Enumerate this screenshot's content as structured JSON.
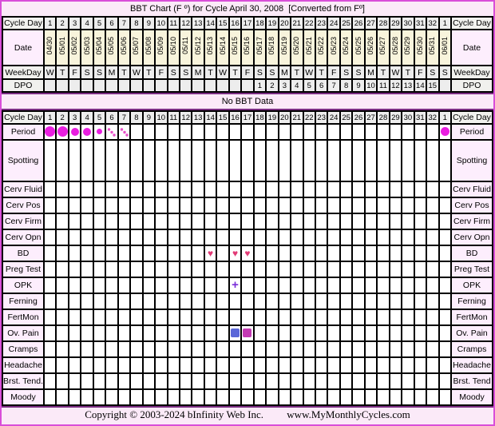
{
  "title": "BBT Chart (F º) for Cycle April 30, 2008  [Converted from Fº]",
  "banner": "No BBT Data",
  "footer": {
    "copyright": "Copyright © 2003-2024 bInfinity Web Inc.",
    "site": "www.MyMonthlyCycles.com"
  },
  "colors": {
    "frame": "#d94ed9",
    "page_bg": "#fbeaf8",
    "rule": "#7a2d82",
    "grid": "#000000",
    "label_pink": "#fdeefd",
    "label_gray": "#f1f1ee",
    "cell_gray": "#ededed",
    "date_cream": "#f8f4dc",
    "period_dot": "#e91ee0",
    "spot_dot": "#e84fc8",
    "heart": "#e23a76",
    "plus": "#7b2fd8",
    "ov_pain_blue": "#5b67d8",
    "ov_pain_magenta": "#c43ab4"
  },
  "calendar_labels": {
    "cycle_day": "Cycle Day",
    "date": "Date",
    "weekday": "WeekDay",
    "dpo": "DPO"
  },
  "marker_glyphs": {
    "heart": "♥",
    "plus": "+"
  },
  "chart_data": {
    "type": "table",
    "title": "BBT Chart (F º) for Cycle April 30, 2008 [Converted from Fº]",
    "bbt_plot": "No BBT Data",
    "cycle_days": [
      "1",
      "2",
      "3",
      "4",
      "5",
      "6",
      "7",
      "8",
      "9",
      "10",
      "11",
      "12",
      "13",
      "14",
      "15",
      "16",
      "17",
      "18",
      "19",
      "20",
      "21",
      "22",
      "23",
      "24",
      "25",
      "26",
      "27",
      "28",
      "29",
      "30",
      "31",
      "32",
      "1"
    ],
    "dates": [
      "04/30",
      "05/01",
      "05/02",
      "05/03",
      "05/04",
      "05/05",
      "05/06",
      "05/07",
      "05/08",
      "05/09",
      "05/10",
      "05/11",
      "05/12",
      "05/13",
      "05/14",
      "05/15",
      "05/16",
      "05/17",
      "05/18",
      "05/19",
      "05/20",
      "05/21",
      "05/22",
      "05/23",
      "05/24",
      "05/25",
      "05/26",
      "05/27",
      "05/28",
      "05/29",
      "05/30",
      "05/31",
      "06/01"
    ],
    "weekdays": [
      "W",
      "T",
      "F",
      "S",
      "S",
      "M",
      "T",
      "W",
      "T",
      "F",
      "S",
      "S",
      "M",
      "T",
      "W",
      "T",
      "F",
      "S",
      "S",
      "M",
      "T",
      "W",
      "T",
      "F",
      "S",
      "S",
      "M",
      "T",
      "W",
      "T",
      "F",
      "S",
      "S"
    ],
    "dpo": [
      "",
      "",
      "",
      "",
      "",
      "",
      "",
      "",
      "",
      "",
      "",
      "",
      "",
      "",
      "",
      "",
      "",
      "1",
      "2",
      "3",
      "4",
      "5",
      "6",
      "7",
      "8",
      "9",
      "10",
      "11",
      "12",
      "13",
      "14",
      "15",
      ""
    ],
    "events": {
      "period_heavy_days": [
        1,
        2
      ],
      "period_medium_days": [
        3,
        4
      ],
      "period_light_days": [
        5
      ],
      "period_spotting_days": [
        6,
        7
      ],
      "next_cycle_period_start_column": 33,
      "bd_days": [
        14,
        16,
        17
      ],
      "opk_positive_days": [
        16
      ],
      "ov_pain_days": [
        16,
        17
      ]
    },
    "symptom_rows": [
      {
        "label": "Period",
        "right": "Period",
        "markers": [
          {
            "day": 1,
            "kind": "dot",
            "size": 13
          },
          {
            "day": 2,
            "kind": "dot",
            "size": 13
          },
          {
            "day": 3,
            "kind": "dot",
            "size": 10
          },
          {
            "day": 4,
            "kind": "dot",
            "size": 10
          },
          {
            "day": 5,
            "kind": "dot",
            "size": 7
          },
          {
            "day": 6,
            "kind": "spot"
          },
          {
            "day": 7,
            "kind": "spot"
          },
          {
            "day": 33,
            "kind": "dot",
            "size": 11
          }
        ]
      },
      {
        "label": "Spotting",
        "right": "Spotting",
        "markers": []
      },
      {
        "label": "Cerv Fluid",
        "right": "Cerv Fluid",
        "markers": []
      },
      {
        "label": "Cerv Pos",
        "right": "Cerv Pos",
        "markers": []
      },
      {
        "label": "Cerv Firm",
        "right": "Cerv Firm",
        "markers": []
      },
      {
        "label": "Cerv Opn",
        "right": "Cerv Opn",
        "markers": []
      },
      {
        "label": "BD",
        "right": "BD",
        "markers": [
          {
            "day": 14,
            "kind": "heart"
          },
          {
            "day": 16,
            "kind": "heart"
          },
          {
            "day": 17,
            "kind": "heart"
          }
        ]
      },
      {
        "label": "Preg Test",
        "right": "Preg Test",
        "markers": []
      },
      {
        "label": "OPK",
        "right": "OPK",
        "markers": [
          {
            "day": 16,
            "kind": "plus"
          }
        ]
      },
      {
        "label": "Ferning",
        "right": "Ferning",
        "markers": []
      },
      {
        "label": "FertMon",
        "right": "FertMon",
        "markers": []
      },
      {
        "label": "Ov. Pain",
        "right": "Ov. Pain",
        "markers": [
          {
            "day": 16,
            "kind": "square",
            "color": "#5b67d8"
          },
          {
            "day": 17,
            "kind": "square",
            "color": "#c43ab4"
          }
        ]
      },
      {
        "label": "Cramps",
        "right": "Cramps",
        "markers": []
      },
      {
        "label": "Headache",
        "right": "Headache",
        "markers": []
      },
      {
        "label": "Brst. Tend.",
        "right": "Brst. Tend",
        "markers": []
      },
      {
        "label": "Moody",
        "right": "Moody",
        "markers": []
      }
    ]
  }
}
